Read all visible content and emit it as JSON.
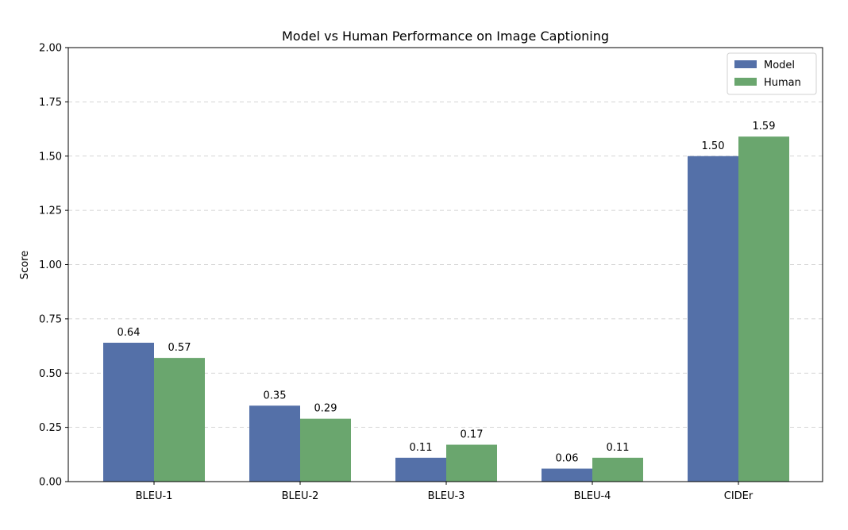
{
  "chart_data": {
    "type": "bar",
    "title": "Model vs Human Performance on Image Captioning",
    "xlabel": "",
    "ylabel": "Score",
    "ylim": [
      0,
      2.0
    ],
    "yticks": [
      "0.00",
      "0.25",
      "0.50",
      "0.75",
      "1.00",
      "1.25",
      "1.50",
      "1.75",
      "2.00"
    ],
    "categories": [
      "BLEU-1",
      "BLEU-2",
      "BLEU-3",
      "BLEU-4",
      "CIDEr"
    ],
    "series": [
      {
        "name": "Model",
        "color": "#5470a8",
        "values": [
          0.64,
          0.35,
          0.11,
          0.06,
          1.5
        ],
        "labels": [
          "0.64",
          "0.35",
          "0.11",
          "0.06",
          "1.50"
        ]
      },
      {
        "name": "Human",
        "color": "#6aa66e",
        "values": [
          0.57,
          0.29,
          0.17,
          0.11,
          1.59
        ],
        "labels": [
          "0.57",
          "0.29",
          "0.17",
          "0.11",
          "1.59"
        ]
      }
    ],
    "grid": "y-dashed",
    "legend_position": "top-right"
  }
}
